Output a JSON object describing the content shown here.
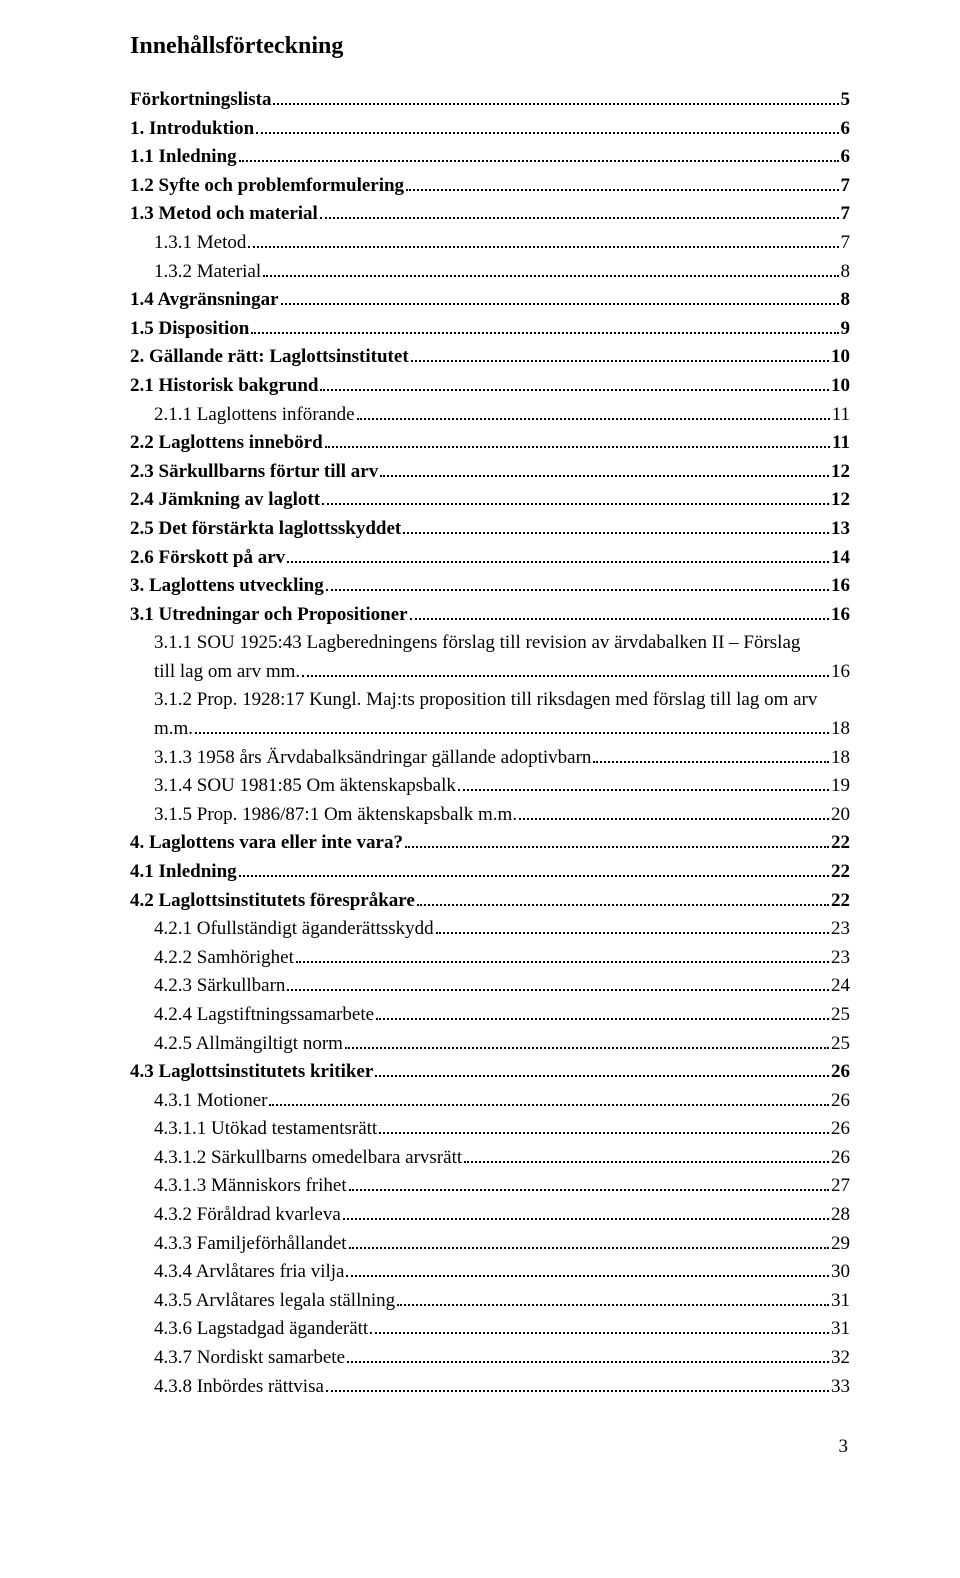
{
  "title": "Innehållsförteckning",
  "page_number": "3",
  "entries": [
    {
      "label": "Förkortningslista",
      "page": "5",
      "bold": true,
      "indent": 0
    },
    {
      "label": "1. Introduktion",
      "page": "6",
      "bold": true,
      "indent": 0
    },
    {
      "label": "1.1 Inledning",
      "page": "6",
      "bold": true,
      "indent": 0
    },
    {
      "label": "1.2 Syfte och problemformulering",
      "page": "7",
      "bold": true,
      "indent": 0
    },
    {
      "label": "1.3 Metod och material",
      "page": "7",
      "bold": true,
      "indent": 0
    },
    {
      "label": "1.3.1 Metod",
      "page": "7",
      "bold": false,
      "indent": 1
    },
    {
      "label": "1.3.2 Material",
      "page": "8",
      "bold": false,
      "indent": 1
    },
    {
      "label": "1.4 Avgränsningar",
      "page": "8",
      "bold": true,
      "indent": 0
    },
    {
      "label": "1.5 Disposition",
      "page": "9",
      "bold": true,
      "indent": 0
    },
    {
      "label": "2. Gällande rätt: Laglottsinstitutet",
      "page": "10",
      "bold": true,
      "indent": 0
    },
    {
      "label": "2.1 Historisk bakgrund",
      "page": "10",
      "bold": true,
      "indent": 0
    },
    {
      "label": "2.1.1 Laglottens införande",
      "page": "11",
      "bold": false,
      "indent": 1
    },
    {
      "label": "2.2 Laglottens innebörd",
      "page": "11",
      "bold": true,
      "indent": 0
    },
    {
      "label": "2.3 Särkullbarns förtur till arv",
      "page": "12",
      "bold": true,
      "indent": 0
    },
    {
      "label": "2.4 Jämkning av laglott",
      "page": "12",
      "bold": true,
      "indent": 0
    },
    {
      "label": "2.5 Det förstärkta laglottsskyddet",
      "page": "13",
      "bold": true,
      "indent": 0
    },
    {
      "label": "2.6 Förskott på arv",
      "page": "14",
      "bold": true,
      "indent": 0
    },
    {
      "label": "3. Laglottens utveckling",
      "page": "16",
      "bold": true,
      "indent": 0
    },
    {
      "label": "3.1 Utredningar och Propositioner",
      "page": "16",
      "bold": true,
      "indent": 0
    },
    {
      "label": "3.1.1 SOU 1925:43 Lagberedningens förslag till revision av ärvdabalken II – Förslag",
      "cont": "till lag om arv mm. ",
      "page": "16",
      "bold": false,
      "indent": 1
    },
    {
      "label": "3.1.2 Prop. 1928:17 Kungl. Maj:ts proposition till riksdagen med förslag till lag om arv",
      "cont": "m.m. ",
      "page": "18",
      "bold": false,
      "indent": 1
    },
    {
      "label": "3.1.3 1958 års Ärvdabalksändringar gällande adoptivbarn",
      "page": "18",
      "bold": false,
      "indent": 1
    },
    {
      "label": "3.1.4 SOU 1981:85 Om äktenskapsbalk",
      "page": "19",
      "bold": false,
      "indent": 1
    },
    {
      "label": "3.1.5 Prop. 1986/87:1 Om äktenskapsbalk m.m.",
      "page": "20",
      "bold": false,
      "indent": 1
    },
    {
      "label": "4. Laglottens vara eller inte vara?",
      "page": "22",
      "bold": true,
      "indent": 0
    },
    {
      "label": "4.1 Inledning",
      "page": "22",
      "bold": true,
      "indent": 0
    },
    {
      "label": "4.2 Laglottsinstitutets förespråkare",
      "page": "22",
      "bold": true,
      "indent": 0
    },
    {
      "label": "4.2.1 Ofullständigt äganderättsskydd",
      "page": "23",
      "bold": false,
      "indent": 1
    },
    {
      "label": "4.2.2 Samhörighet",
      "page": "23",
      "bold": false,
      "indent": 1
    },
    {
      "label": "4.2.3 Särkullbarn",
      "page": "24",
      "bold": false,
      "indent": 1
    },
    {
      "label": "4.2.4 Lagstiftningssamarbete",
      "page": "25",
      "bold": false,
      "indent": 1
    },
    {
      "label": "4.2.5 Allmängiltigt norm",
      "page": "25",
      "bold": false,
      "indent": 1
    },
    {
      "label": "4.3 Laglottsinstitutets kritiker",
      "page": "26",
      "bold": true,
      "indent": 0
    },
    {
      "label": "4.3.1 Motioner",
      "page": "26",
      "bold": false,
      "indent": 1
    },
    {
      "label": "4.3.1.1 Utökad testamentsrätt",
      "page": "26",
      "bold": false,
      "indent": 1
    },
    {
      "label": "4.3.1.2 Särkullbarns omedelbara arvsrätt",
      "page": "26",
      "bold": false,
      "indent": 1
    },
    {
      "label": "4.3.1.3 Människors frihet",
      "page": "27",
      "bold": false,
      "indent": 1
    },
    {
      "label": "4.3.2 Föråldrad kvarleva",
      "page": "28",
      "bold": false,
      "indent": 1
    },
    {
      "label": "4.3.3 Familjeförhållandet",
      "page": "29",
      "bold": false,
      "indent": 1
    },
    {
      "label": "4.3.4 Arvlåtares fria vilja",
      "page": "30",
      "bold": false,
      "indent": 1
    },
    {
      "label": "4.3.5 Arvlåtares legala ställning",
      "page": "31",
      "bold": false,
      "indent": 1
    },
    {
      "label": "4.3.6 Lagstadgad äganderätt",
      "page": "31",
      "bold": false,
      "indent": 1
    },
    {
      "label": "4.3.7 Nordiskt samarbete",
      "page": "32",
      "bold": false,
      "indent": 1
    },
    {
      "label": "4.3.8 Inbördes rättvisa",
      "page": "33",
      "bold": false,
      "indent": 1
    }
  ]
}
